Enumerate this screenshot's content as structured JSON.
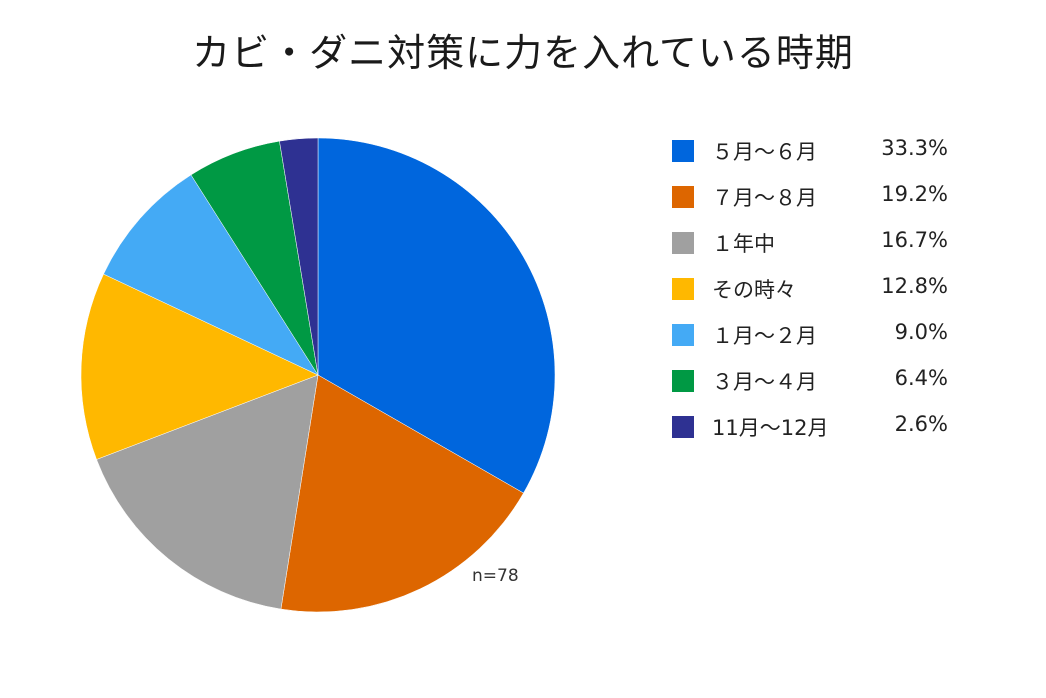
{
  "chart_data": {
    "type": "pie",
    "title": "カビ・ダニ対策に力を入れている時期",
    "note": "n=78",
    "legend_position": "right",
    "slices": [
      {
        "label": "５月～６月",
        "value": 33.3,
        "display": "33.3%",
        "color": "#0066DD"
      },
      {
        "label": "７月～８月",
        "value": 19.2,
        "display": "19.2%",
        "color": "#DD6600"
      },
      {
        "label": "１年中",
        "value": 16.7,
        "display": "16.7%",
        "color": "#A0A0A0"
      },
      {
        "label": "その時々",
        "value": 12.8,
        "display": "12.8%",
        "color": "#FFB800"
      },
      {
        "label": "１月～２月",
        "value": 9.0,
        "display": "9.0%",
        "color": "#44AAF5"
      },
      {
        "label": "３月～４月",
        "value": 6.4,
        "display": "6.4%",
        "color": "#009944"
      },
      {
        "label": "11月～12月",
        "value": 2.6,
        "display": "2.6%",
        "color": "#2E3192"
      }
    ]
  }
}
